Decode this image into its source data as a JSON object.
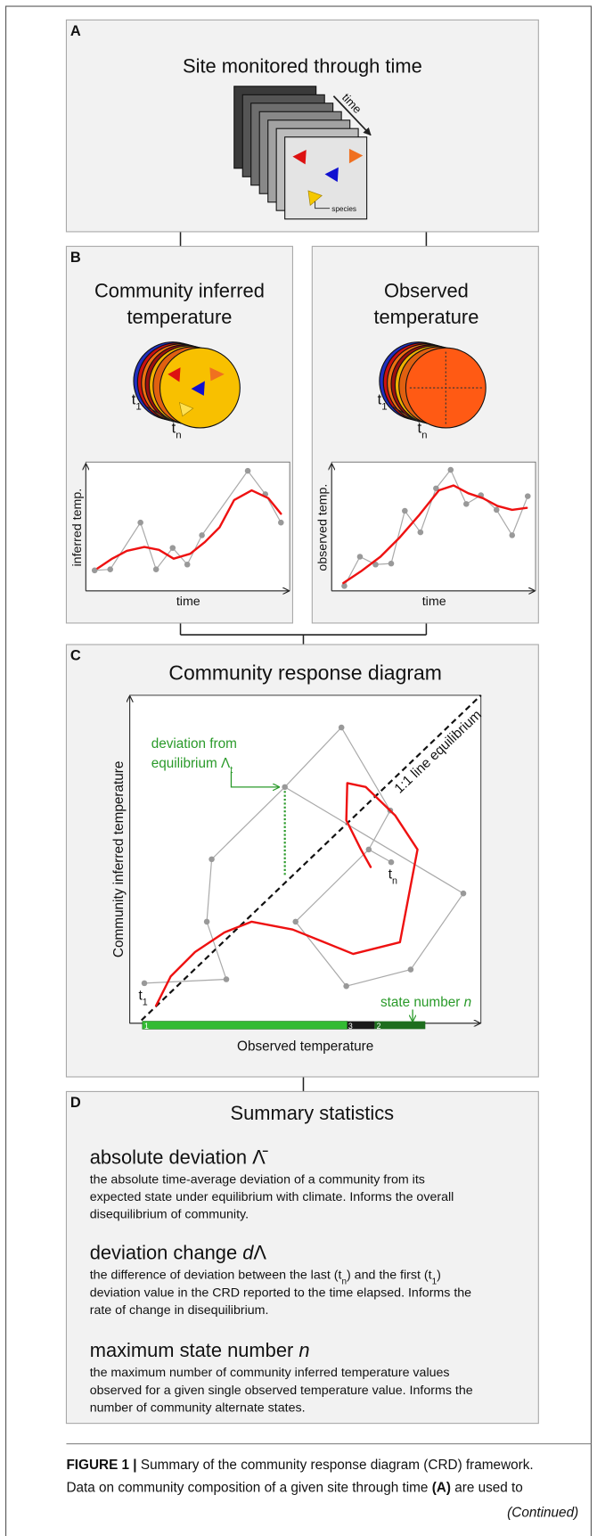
{
  "panel_a": {
    "label": "A",
    "title": "Site monitored through time",
    "arrow_label": "time",
    "species_label": "species"
  },
  "panel_b": {
    "label": "B",
    "left": {
      "title": [
        "Community inferred",
        "temperature"
      ],
      "t_first": [
        {
          "t": "t"
        },
        {
          "t": "1",
          "fmt": "sub"
        }
      ],
      "t_last": [
        {
          "t": "t"
        },
        {
          "t": "n",
          "fmt": "sub"
        }
      ],
      "y_label": "inferred temp.",
      "x_label": "time"
    },
    "right": {
      "title": [
        "Observed",
        "temperature"
      ],
      "t_first": [
        {
          "t": "t"
        },
        {
          "t": "1",
          "fmt": "sub"
        }
      ],
      "t_last": [
        {
          "t": "t"
        },
        {
          "t": "n",
          "fmt": "sub"
        }
      ],
      "y_label": "observed temp.",
      "x_label": "time"
    }
  },
  "panel_c": {
    "label": "C",
    "title": "Community response diagram",
    "deviation": [
      [
        {
          "t": "deviation from"
        }
      ],
      [
        {
          "t": "equilibrium Λ"
        },
        {
          "t": "t",
          "fmt": "sub"
        }
      ]
    ],
    "equilibrium_label": "1:1 line equilibrium",
    "y_label": "Community inferred temperature",
    "x_label": "Observed temperature",
    "t_first": [
      {
        "t": "t"
      },
      {
        "t": "1",
        "fmt": "sub"
      }
    ],
    "t_last": [
      {
        "t": "t"
      },
      {
        "t": "n",
        "fmt": "sub"
      }
    ],
    "state": [
      {
        "t": "state number "
      },
      {
        "t": "n",
        "fmt": "italic"
      }
    ],
    "state_numbers": [
      "1",
      "3",
      "2"
    ]
  },
  "panel_d": {
    "label": "D",
    "title": "Summary statistics",
    "stats": [
      {
        "name": [
          {
            "t": "absolute deviation Λ̄"
          }
        ],
        "text": [
          "the absolute time-average deviation of a community from its",
          "expected state under equilibrium with climate. Informs the overall",
          "disequilibrium of community."
        ]
      },
      {
        "name": [
          {
            "t": "deviation change "
          },
          {
            "t": "d",
            "fmt": "italic"
          },
          {
            "t": "Λ"
          }
        ],
        "text": [
          [
            {
              "t": "the difference of deviation between the last (t"
            },
            {
              "t": "n",
              "fmt": "sub"
            },
            {
              "t": ") and the first (t"
            },
            {
              "t": "1",
              "fmt": "sub"
            },
            {
              "t": ")"
            }
          ],
          "deviation value in the CRD reported to the time elapsed. Informs the",
          "rate of change in disequilibrium."
        ]
      },
      {
        "name": [
          {
            "t": "maximum state number "
          },
          {
            "t": "n",
            "fmt": "italic"
          }
        ],
        "text": [
          "the maximum number of community inferred temperature values",
          "observed for a given single observed temperature value. Informs the",
          "number of community alternate states."
        ]
      }
    ]
  },
  "caption": {
    "lines": [
      [
        {
          "t": "FIGURE 1 | ",
          "fmt": "bold"
        },
        {
          "t": "Summary of the community response diagram (CRD) framework."
        }
      ],
      [
        {
          "t": "Data on community composition of a given site through time "
        },
        {
          "t": "(A)",
          "fmt": "bold"
        },
        {
          "t": " are used to"
        }
      ]
    ],
    "continued": "(Continued)"
  }
}
